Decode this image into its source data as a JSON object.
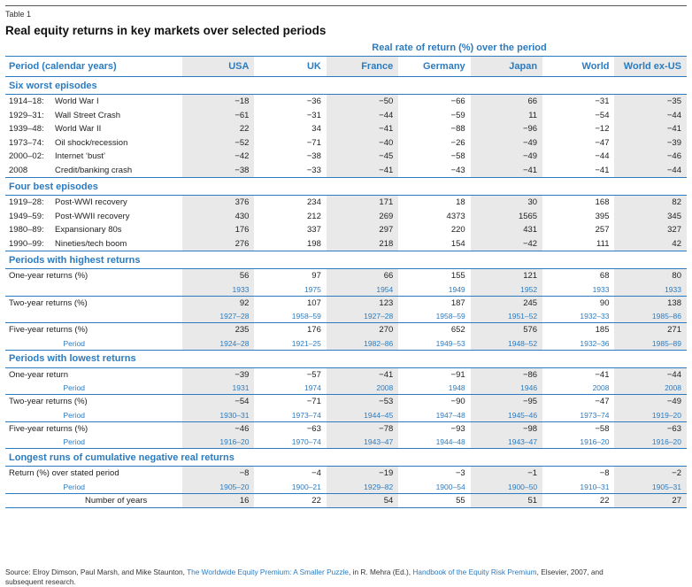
{
  "table_label": "Table 1",
  "title": "Real equity returns in key markets over selected periods",
  "super_header": "Real rate of return (%) over the period",
  "columns": [
    "Period (calendar years)",
    "USA",
    "UK",
    "France",
    "Germany",
    "Japan",
    "World",
    "World ex-US"
  ],
  "sections": {
    "worst": {
      "title": "Six worst episodes",
      "rows": [
        {
          "years": "1914–18:",
          "event": "World War I",
          "values": [
            "−18",
            "−36",
            "−50",
            "−66",
            "66",
            "−31",
            "−35"
          ]
        },
        {
          "years": "1929–31:",
          "event": "Wall Street Crash",
          "values": [
            "−61",
            "−31",
            "−44",
            "−59",
            "11",
            "−54",
            "−44"
          ]
        },
        {
          "years": "1939–48:",
          "event": "World War II",
          "values": [
            "22",
            "34",
            "−41",
            "−88",
            "−96",
            "−12",
            "−41"
          ]
        },
        {
          "years": "1973–74:",
          "event": "Oil shock/recession",
          "values": [
            "−52",
            "−71",
            "−40",
            "−26",
            "−49",
            "−47",
            "−39"
          ]
        },
        {
          "years": "2000–02:",
          "event": "Internet ‘bust’",
          "values": [
            "−42",
            "−38",
            "−45",
            "−58",
            "−49",
            "−44",
            "−46"
          ]
        },
        {
          "years": "2008",
          "event": "Credit/banking crash",
          "values": [
            "−38",
            "−33",
            "−41",
            "−43",
            "−41",
            "−41",
            "−44"
          ]
        }
      ]
    },
    "best": {
      "title": "Four best episodes",
      "rows": [
        {
          "years": "1919–28:",
          "event": "Post-WWI recovery",
          "values": [
            "376",
            "234",
            "171",
            "18",
            "30",
            "168",
            "82"
          ]
        },
        {
          "years": "1949–59:",
          "event": "Post-WWII recovery",
          "values": [
            "430",
            "212",
            "269",
            "4373",
            "1565",
            "395",
            "345"
          ]
        },
        {
          "years": "1980–89:",
          "event": "Expansionary 80s",
          "values": [
            "176",
            "337",
            "297",
            "220",
            "431",
            "257",
            "327"
          ]
        },
        {
          "years": "1990–99:",
          "event": "Nineties/tech boom",
          "values": [
            "276",
            "198",
            "218",
            "154",
            "−42",
            "111",
            "42"
          ]
        }
      ]
    },
    "highest": {
      "title": "Periods with highest returns",
      "groups": [
        {
          "label": "One-year returns (%)",
          "values": [
            "56",
            "97",
            "66",
            "155",
            "121",
            "68",
            "80"
          ],
          "period_label": "",
          "periods": [
            "1933",
            "1975",
            "1954",
            "1949",
            "1952",
            "1933",
            "1933"
          ]
        },
        {
          "label": "Two-year returns (%)",
          "values": [
            "92",
            "107",
            "123",
            "187",
            "245",
            "90",
            "138"
          ],
          "period_label": "",
          "periods": [
            "1927–28",
            "1958–59",
            "1927–28",
            "1958–59",
            "1951–52",
            "1932–33",
            "1985–86"
          ]
        },
        {
          "label": "Five-year returns (%)",
          "values": [
            "235",
            "176",
            "270",
            "652",
            "576",
            "185",
            "271"
          ],
          "period_label": "Period",
          "periods": [
            "1924–28",
            "1921–25",
            "1982–86",
            "1949–53",
            "1948–52",
            "1932–36",
            "1985–89"
          ]
        }
      ]
    },
    "lowest": {
      "title": "Periods with lowest returns",
      "groups": [
        {
          "label": "One-year return",
          "values": [
            "−39",
            "−57",
            "−41",
            "−91",
            "−86",
            "−41",
            "−44"
          ],
          "period_label": "Period",
          "periods": [
            "1931",
            "1974",
            "2008",
            "1948",
            "1946",
            "2008",
            "2008"
          ]
        },
        {
          "label": "Two-year returns (%)",
          "values": [
            "−54",
            "−71",
            "−53",
            "−90",
            "−95",
            "−47",
            "−49"
          ],
          "period_label": "Period",
          "periods": [
            "1930–31",
            "1973–74",
            "1944–45",
            "1947–48",
            "1945–46",
            "1973–74",
            "1919–20"
          ]
        },
        {
          "label": "Five-year returns (%)",
          "values": [
            "−46",
            "−63",
            "−78",
            "−93",
            "−98",
            "−58",
            "−63"
          ],
          "period_label": "Period",
          "periods": [
            "1916–20",
            "1970–74",
            "1943–47",
            "1944–48",
            "1943–47",
            "1916–20",
            "1916–20"
          ]
        }
      ]
    },
    "runs": {
      "title": "Longest runs of cumulative negative real returns",
      "return_label": "Return (%) over stated period",
      "return_values": [
        "−8",
        "−4",
        "−19",
        "−3",
        "−1",
        "−8",
        "−2"
      ],
      "period_label": "Period",
      "periods": [
        "1905–20",
        "1900–21",
        "1929–82",
        "1900–54",
        "1900–50",
        "1910–31",
        "1905–31"
      ],
      "years_label": "Number of years",
      "years_values": [
        "16",
        "22",
        "54",
        "55",
        "51",
        "22",
        "27"
      ]
    }
  },
  "source": {
    "prefix": "Source: Elroy Dimson, Paul Marsh, and Mike Staunton, ",
    "link1": "The Worldwide Equity Premium: A Smaller Puzzle",
    "mid": ", in R. Mehra (Ed.), ",
    "link2": "Handbook of the Equity Risk Premium",
    "suffix": ", Elsevier, 2007, and",
    "line2": "subsequent research."
  },
  "colors": {
    "accent": "#2c7bbf",
    "shade": "#e9e9e9"
  }
}
